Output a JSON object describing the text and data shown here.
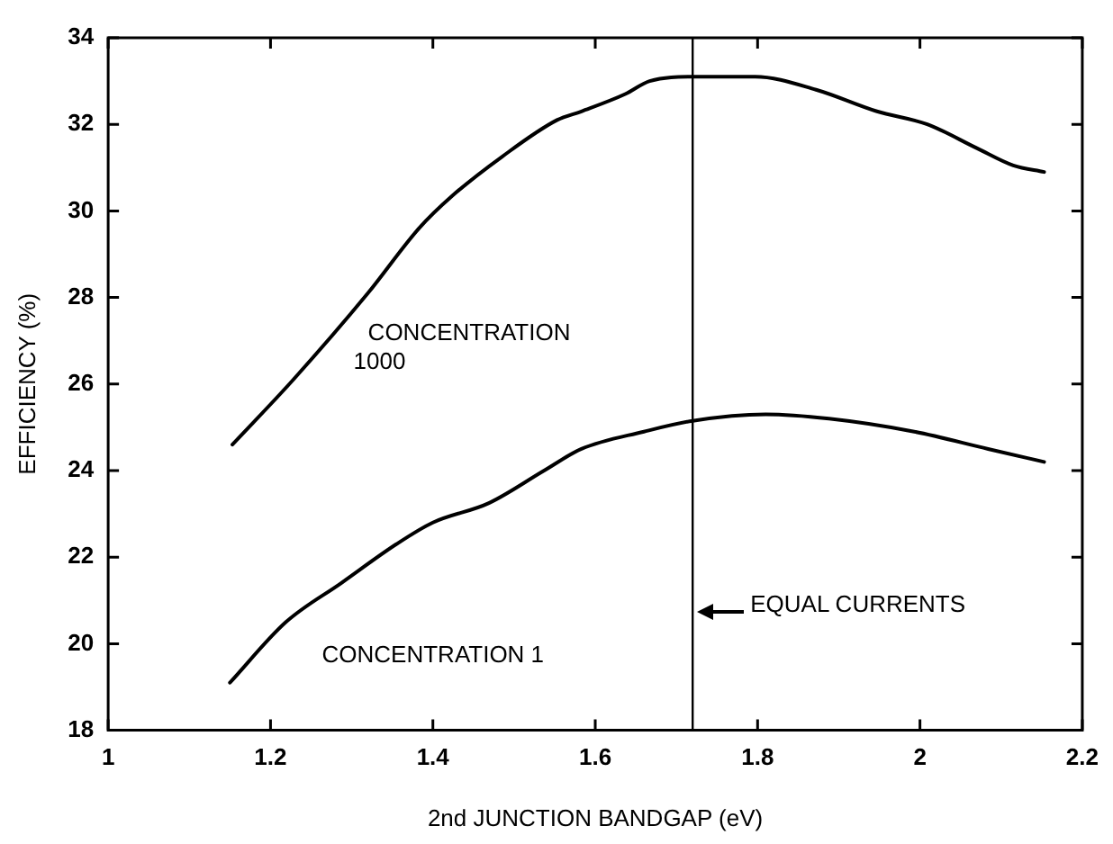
{
  "chart_data": {
    "type": "line",
    "xlabel": "2nd JUNCTION BANDGAP (eV)",
    "ylabel": "EFFICIENCY (%)",
    "xlim": [
      1,
      2.2
    ],
    "xticks": [
      1,
      1.2,
      1.4,
      1.6,
      1.8,
      2,
      2.2
    ],
    "ylim": [
      18,
      34
    ],
    "yticks": [
      18,
      20,
      22,
      24,
      26,
      28,
      30,
      32,
      34
    ],
    "grid": false,
    "legend": false,
    "marker": "none",
    "line_style": "solid",
    "series": [
      {
        "name": "CONCENTRATION 1000",
        "color": "#000000",
        "x": [
          1.153,
          1.228,
          1.32,
          1.383,
          1.424,
          1.485,
          1.553,
          1.583,
          1.637,
          1.667,
          1.72,
          1.797,
          1.872,
          1.947,
          2.009,
          2.07,
          2.115,
          2.153
        ],
        "values": [
          24.6,
          26.1,
          28.1,
          29.6,
          30.35,
          31.25,
          32.1,
          32.3,
          32.7,
          33.0,
          33.1,
          33.1,
          32.8,
          32.3,
          32.0,
          31.45,
          31.05,
          30.9
        ]
      },
      {
        "name": "CONCENTRATION 1",
        "color": "#000000",
        "x": [
          1.15,
          1.219,
          1.287,
          1.355,
          1.4,
          1.469,
          1.537,
          1.583,
          1.66,
          1.72,
          1.81,
          1.888,
          1.993,
          2.084,
          2.153
        ],
        "values": [
          19.1,
          20.5,
          21.4,
          22.3,
          22.8,
          23.25,
          24.0,
          24.5,
          24.9,
          25.15,
          25.3,
          25.2,
          24.9,
          24.5,
          24.2
        ]
      }
    ],
    "ref_lines": [
      {
        "axis": "x",
        "value": 1.72,
        "label": "EQUAL CURRENTS",
        "color": "#000000",
        "line_style": "solid"
      }
    ]
  }
}
